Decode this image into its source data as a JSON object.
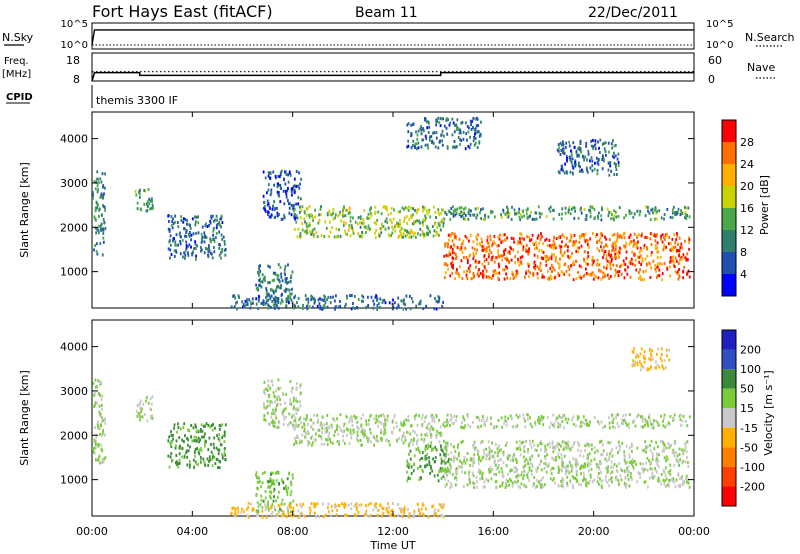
{
  "header": {
    "station": "Fort Hays East (fitACF)",
    "beam": "Beam 11",
    "date": "22/Dec/2011"
  },
  "labels": {
    "nsky": "N.Sky",
    "nsearch": "N.Search",
    "freq": "Freq.",
    "mhz": "[MHz]",
    "nave": "Nave",
    "cpid": "CPID",
    "cpid_value": "themis 3300 IF",
    "slant_range": "Slant Range [km]",
    "time_ut": "Time UT",
    "power_label": "Power [dB]",
    "velocity_label": "Velocity [m s⁻¹]"
  },
  "ticks": {
    "time": [
      "00:00",
      "04:00",
      "08:00",
      "12:00",
      "16:00",
      "20:00",
      "00:00"
    ],
    "range": [
      "1000",
      "2000",
      "3000",
      "4000"
    ],
    "noise_left": [
      "10^5",
      "10^0"
    ],
    "noise_right": [
      "10^5",
      "10^0"
    ],
    "freq": [
      "18",
      "8"
    ],
    "nave": [
      "60",
      "0"
    ],
    "power": [
      "4",
      "8",
      "12",
      "16",
      "20",
      "24",
      "28"
    ],
    "velocity": [
      "200",
      "100",
      "50",
      "15",
      "-15",
      "-50",
      "-100",
      "-200"
    ]
  },
  "colors": {
    "power": [
      "#0000ff",
      "#1f4fb0",
      "#2f7f6f",
      "#4aa84a",
      "#c8d400",
      "#ffb000",
      "#ff7000",
      "#ff0000"
    ],
    "velocity": [
      "#2020c0",
      "#3050c0",
      "#3a8a3a",
      "#7acc3a",
      "#c8c8c8",
      "#ffb000",
      "#ff8000",
      "#ff4000",
      "#ff0000"
    ]
  },
  "chart_data": [
    {
      "type": "line",
      "title": "N.Sky / N.Search",
      "x_range_hours": [
        0,
        24
      ],
      "series": [
        {
          "name": "N.Sky",
          "x": [
            0,
            0.1,
            24
          ],
          "y_log": [
            0,
            4.2,
            4.2
          ]
        },
        {
          "name": "N.Search",
          "x": [
            0,
            24
          ],
          "y_log": [
            0,
            0
          ]
        }
      ]
    },
    {
      "type": "line",
      "x_range_hours": [
        0,
        24
      ],
      "series": [
        {
          "name": "Freq.",
          "unit": "MHz",
          "x": [
            0,
            0.1,
            1.9,
            1.9,
            13.9,
            13.9,
            24
          ],
          "y": [
            8,
            11,
            11,
            10,
            10,
            11,
            11
          ]
        },
        {
          "name": "Nave",
          "x": [
            0,
            24
          ],
          "y": [
            20,
            20
          ]
        }
      ],
      "ylim_freq": [
        8,
        18
      ],
      "ylim_nave": [
        0,
        60
      ]
    },
    {
      "type": "heatmap",
      "title": "Power [dB]",
      "x_range_hours": [
        0,
        24
      ],
      "ylim_km": [
        180,
        4600
      ],
      "color_scale": [
        0,
        32
      ],
      "regions": [
        {
          "t0": 0.0,
          "t1": 0.5,
          "r0": 1400,
          "r1": 3300,
          "value": 10
        },
        {
          "t0": 1.7,
          "t1": 2.4,
          "r0": 2350,
          "r1": 2900,
          "value": 12
        },
        {
          "t0": 3.0,
          "t1": 5.3,
          "r0": 1300,
          "r1": 2300,
          "value": 8
        },
        {
          "t0": 6.5,
          "t1": 8.0,
          "r0": 300,
          "r1": 1200,
          "value": 10
        },
        {
          "t0": 6.8,
          "t1": 8.3,
          "r0": 2200,
          "r1": 3300,
          "value": 6
        },
        {
          "t0": 8.0,
          "t1": 14.0,
          "r0": 1800,
          "r1": 2500,
          "value": 16
        },
        {
          "t0": 14.0,
          "t1": 23.8,
          "r0": 850,
          "r1": 1900,
          "value": 26
        },
        {
          "t0": 14.0,
          "t1": 23.8,
          "r0": 2200,
          "r1": 2500,
          "value": 12
        },
        {
          "t0": 12.5,
          "t1": 15.5,
          "r0": 3800,
          "r1": 4500,
          "value": 8
        },
        {
          "t0": 18.5,
          "t1": 21.0,
          "r0": 3200,
          "r1": 4000,
          "value": 8
        },
        {
          "t0": 5.5,
          "t1": 14.0,
          "r0": 180,
          "r1": 500,
          "value": 8
        }
      ]
    },
    {
      "type": "heatmap",
      "title": "Velocity [m s⁻¹]",
      "x_range_hours": [
        0,
        24
      ],
      "ylim_km": [
        180,
        4600
      ],
      "color_scale": [
        -200,
        200
      ],
      "regions": [
        {
          "t0": 0.0,
          "t1": 0.5,
          "r0": 1400,
          "r1": 3300,
          "value": 0
        },
        {
          "t0": 1.7,
          "t1": 2.4,
          "r0": 2350,
          "r1": 2900,
          "value": 0
        },
        {
          "t0": 3.0,
          "t1": 5.3,
          "r0": 1300,
          "r1": 2300,
          "value": 40
        },
        {
          "t0": 6.5,
          "t1": 8.0,
          "r0": 300,
          "r1": 1200,
          "value": 20
        },
        {
          "t0": 6.8,
          "t1": 8.3,
          "r0": 2200,
          "r1": 3300,
          "value": 0
        },
        {
          "t0": 8.0,
          "t1": 14.0,
          "r0": 1800,
          "r1": 2500,
          "value": 0
        },
        {
          "t0": 14.0,
          "t1": 23.8,
          "r0": 850,
          "r1": 1900,
          "value": 0
        },
        {
          "t0": 14.0,
          "t1": 23.8,
          "r0": 2200,
          "r1": 2500,
          "value": 0
        },
        {
          "t0": 12.5,
          "t1": 14.2,
          "r0": 1000,
          "r1": 1800,
          "value": 30
        },
        {
          "t0": 5.5,
          "t1": 14.0,
          "r0": 180,
          "r1": 500,
          "value": -40
        },
        {
          "t0": 21.5,
          "t1": 23.0,
          "r0": 3500,
          "r1": 4000,
          "value": -40
        }
      ]
    }
  ]
}
